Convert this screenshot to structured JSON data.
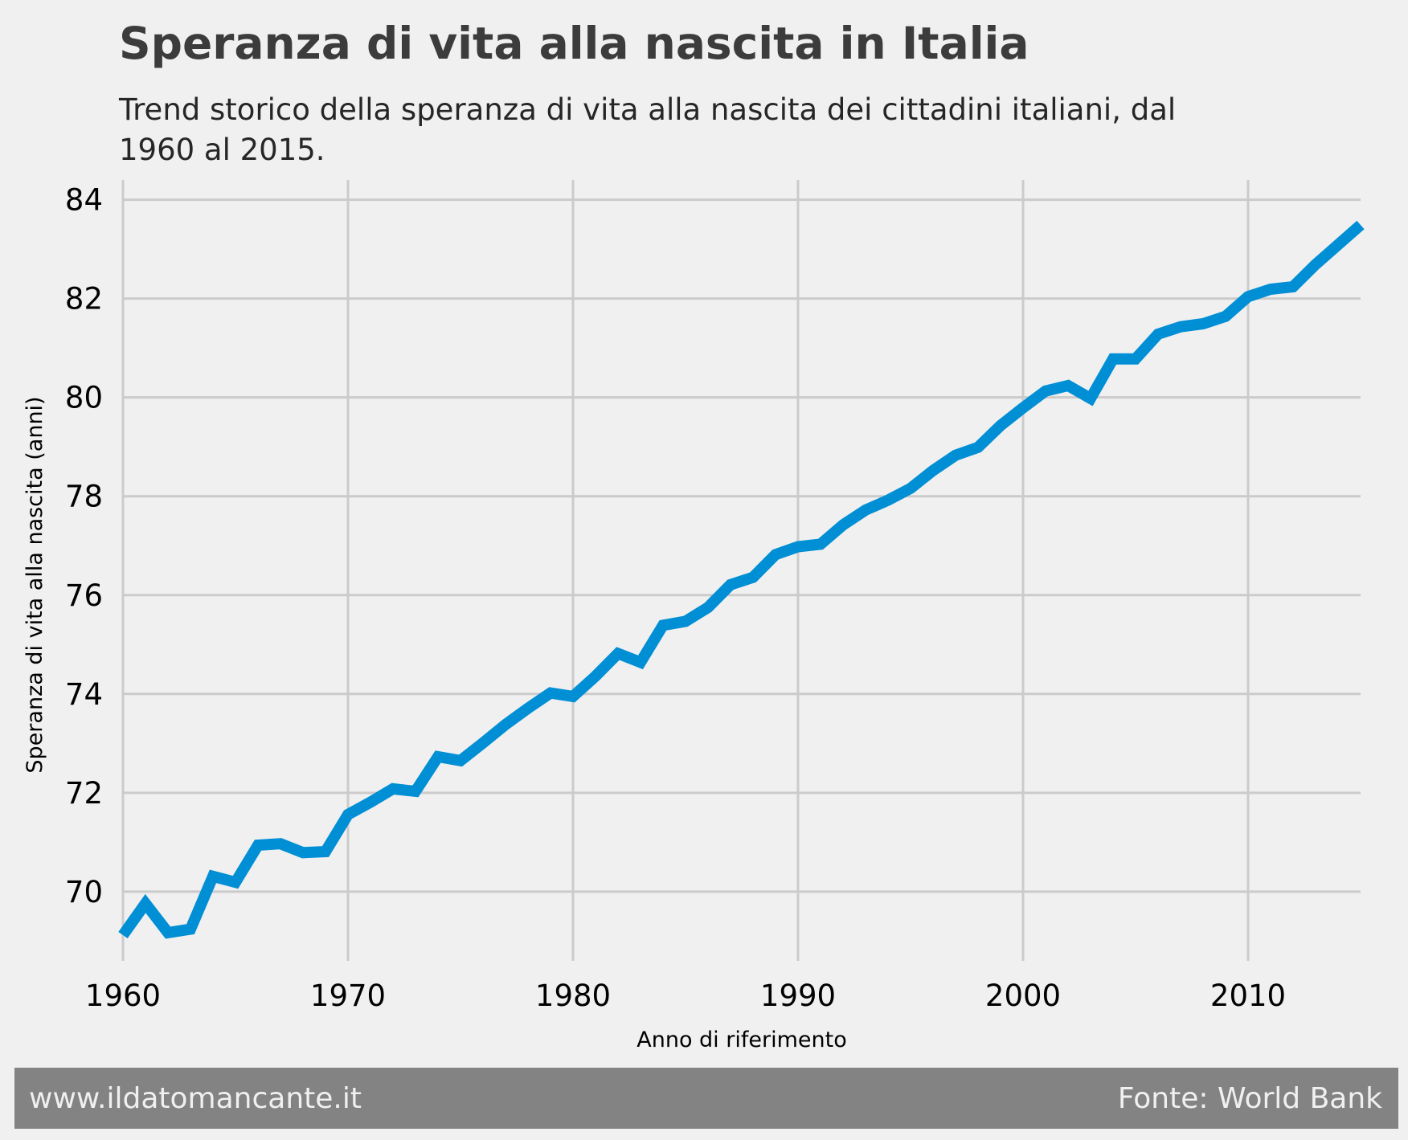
{
  "title": "Speranza di vita alla nascita in Italia",
  "subtitle": "Trend storico della speranza di vita alla nascita dei cittadini italiani, dal 1960 al 2015.",
  "footer": {
    "left": "www.ildatomancante.it",
    "right": "Fonte: World Bank"
  },
  "colors": {
    "background": "#f0f0f0",
    "line": "#008fd5",
    "grid": "#cbcbcb",
    "footer_bg": "#838383",
    "footer_text": "#f0f0f0"
  },
  "chart_data": {
    "type": "line",
    "title": "Speranza di vita alla nascita in Italia",
    "subtitle": "Trend storico della speranza di vita alla nascita dei cittadini italiani, dal 1960 al 2015.",
    "xlabel": "Anno di riferimento",
    "ylabel": "Speranza di vita alla nascita (anni)",
    "xlim": [
      1960,
      2015
    ],
    "ylim": [
      68.6,
      84.4
    ],
    "xticks": [
      1960,
      1970,
      1980,
      1990,
      2000,
      2010
    ],
    "yticks": [
      70,
      72,
      74,
      76,
      78,
      80,
      82,
      84
    ],
    "grid": true,
    "x": [
      1960,
      1961,
      1962,
      1963,
      1964,
      1965,
      1966,
      1967,
      1968,
      1969,
      1970,
      1971,
      1972,
      1973,
      1974,
      1975,
      1976,
      1977,
      1978,
      1979,
      1980,
      1981,
      1982,
      1983,
      1984,
      1985,
      1986,
      1987,
      1988,
      1989,
      1990,
      1991,
      1992,
      1993,
      1994,
      1995,
      1996,
      1997,
      1998,
      1999,
      2000,
      2001,
      2002,
      2003,
      2004,
      2005,
      2006,
      2007,
      2008,
      2009,
      2010,
      2011,
      2012,
      2013,
      2014,
      2015
    ],
    "y": [
      69.12,
      69.76,
      69.17,
      69.24,
      70.31,
      70.19,
      70.94,
      70.97,
      70.79,
      70.81,
      71.56,
      71.81,
      72.08,
      72.03,
      72.73,
      72.65,
      73.01,
      73.38,
      73.71,
      74.02,
      73.95,
      74.36,
      74.82,
      74.64,
      75.39,
      75.47,
      75.75,
      76.21,
      76.36,
      76.82,
      76.98,
      77.03,
      77.42,
      77.72,
      77.92,
      78.16,
      78.52,
      78.83,
      78.99,
      79.43,
      79.79,
      80.13,
      80.24,
      79.98,
      80.78,
      80.78,
      81.28,
      81.43,
      81.49,
      81.64,
      82.04,
      82.19,
      82.24,
      82.69,
      83.09,
      83.49
    ]
  }
}
